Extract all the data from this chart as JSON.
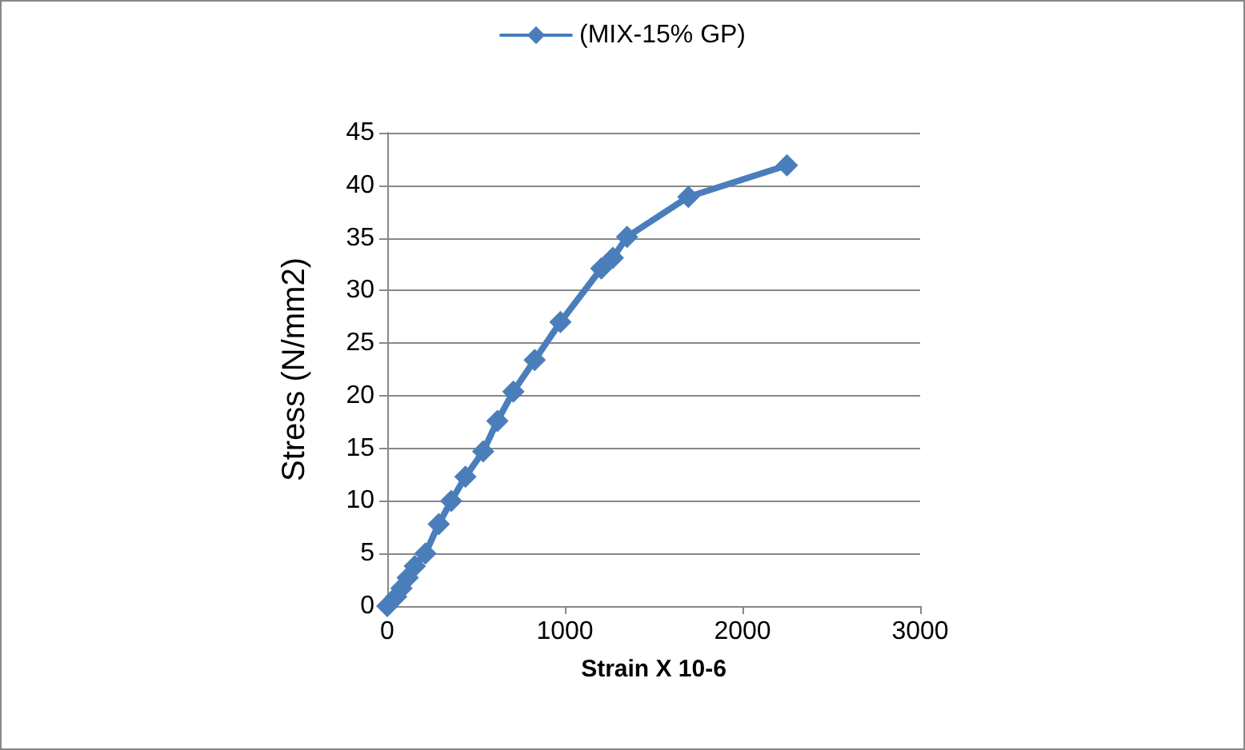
{
  "chart_data": {
    "type": "line",
    "xlabel": "Strain X 10-6",
    "ylabel": "Stress (N/mm2)",
    "xlim": [
      0,
      3000
    ],
    "xticks": [
      0,
      1000,
      2000,
      3000
    ],
    "ylim": [
      0,
      45
    ],
    "yticks": [
      0,
      5,
      10,
      15,
      20,
      25,
      30,
      35,
      40,
      45
    ],
    "grid": "y",
    "legend": "top",
    "marker": "diamond",
    "line_style": "solid",
    "series": [
      {
        "name": "(MIX-15% GP)",
        "color": "#4a7ebb",
        "x": [
          0,
          50,
          80,
          115,
          155,
          215,
          290,
          360,
          440,
          540,
          620,
          710,
          830,
          975,
          1205,
          1270,
          1350,
          1695,
          2250
        ],
        "values": [
          0,
          0.9,
          1.7,
          2.7,
          3.8,
          5,
          7.8,
          10,
          12.3,
          14.7,
          17.6,
          20.4,
          23.4,
          27,
          32.1,
          33.1,
          35.1,
          38.9,
          41.9
        ]
      }
    ]
  }
}
